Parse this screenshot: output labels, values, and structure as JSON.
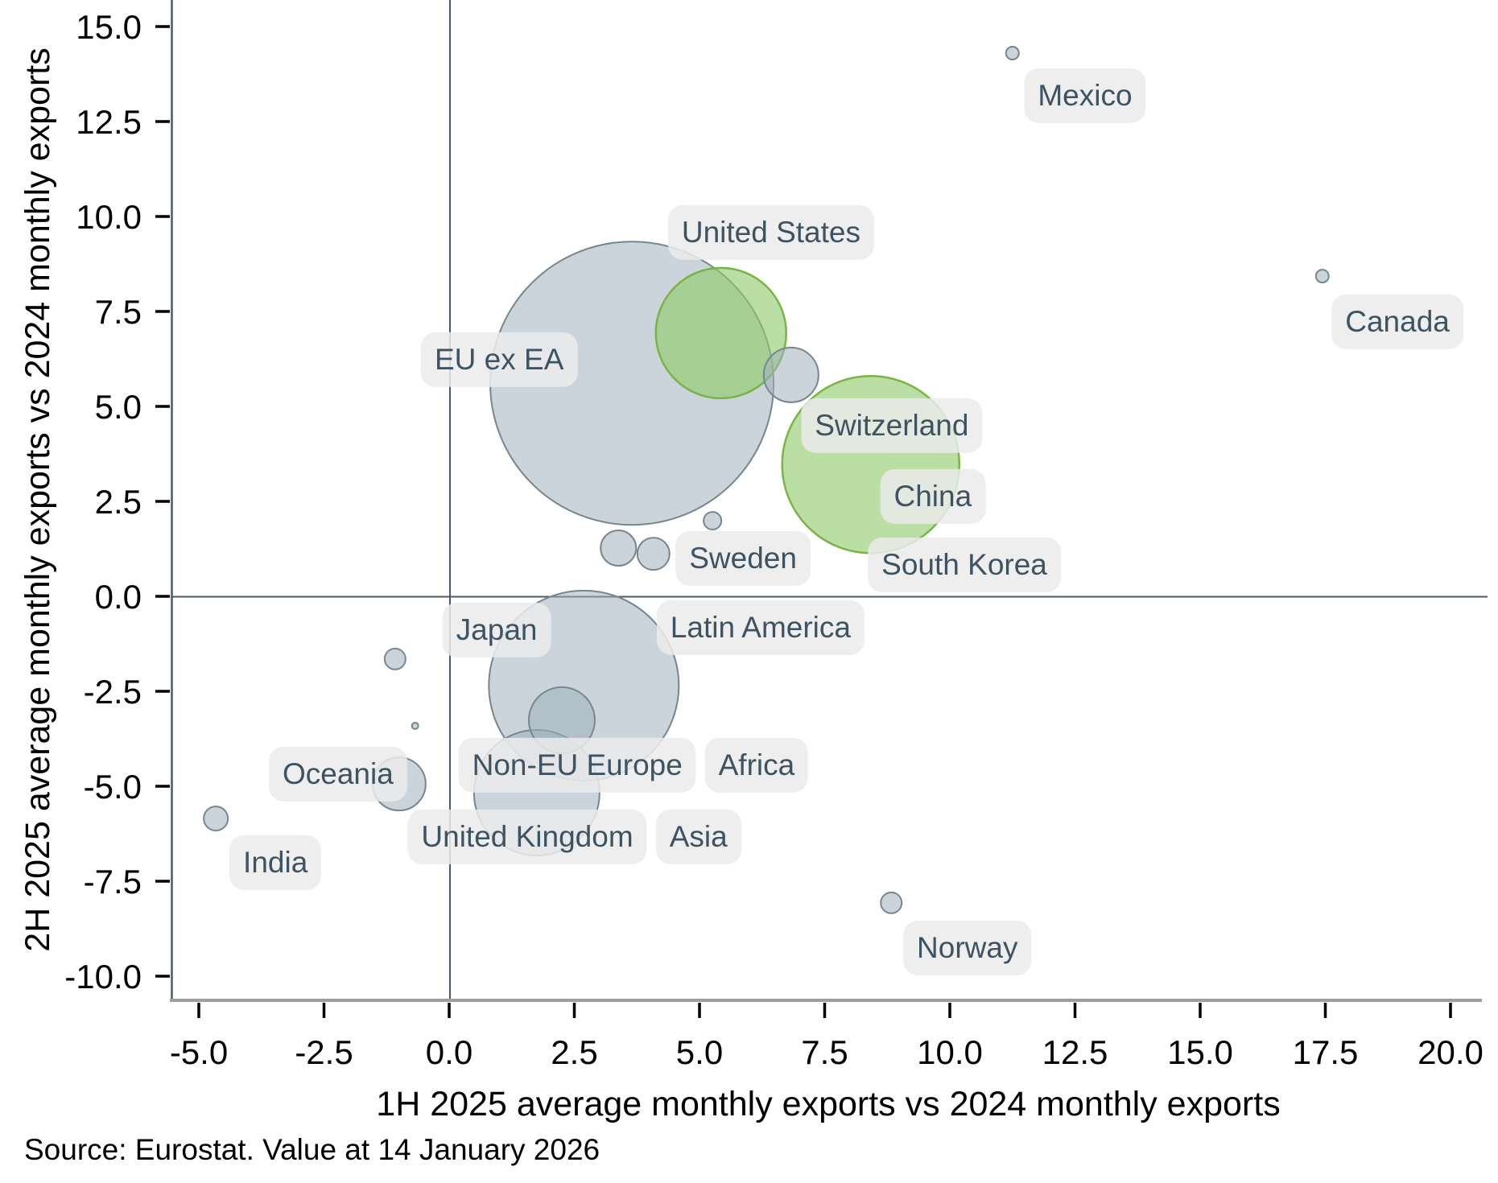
{
  "source_note": "Source: Eurostat. Value at 14 January 2026",
  "chart_data": {
    "type": "scatter",
    "title": "",
    "xlabel": "1H 2025 average monthly exports vs 2024 monthly exports",
    "ylabel": "2H 2025 average monthly exports vs 2024 monthly exports",
    "xlim": [
      -5.55,
      20.95
    ],
    "ylim": [
      -10.65,
      15.7
    ],
    "xticks": [
      -5.0,
      -2.5,
      0.0,
      2.5,
      5.0,
      7.5,
      10.0,
      12.5,
      15.0,
      17.5,
      20.0
    ],
    "yticks": [
      15.0,
      12.5,
      10.0,
      7.5,
      5.0,
      2.5,
      0.0,
      -2.5,
      -5.0,
      -7.5,
      -10.0
    ],
    "grid": "zero-lines-only",
    "legend": "none",
    "colors": {
      "gray_fill": "#9fb0bc",
      "gray_stroke": "#77868f",
      "green_fill": "#8fca6a",
      "green_stroke": "#79b445",
      "zero_line": "#4a5a66",
      "bottom_spine": "#9e9e9e",
      "tick": "#000000",
      "label_bg": "rgba(235,235,235,0.85)",
      "label_text": "#3d5362"
    },
    "points": [
      {
        "name": "EU ex EA",
        "x": 3.65,
        "y": 5.61,
        "r": 176,
        "color": "gray"
      },
      {
        "name": "Latin America",
        "x": 2.69,
        "y": -2.35,
        "r": 118,
        "color": "gray"
      },
      {
        "name": "China",
        "x": 8.42,
        "y": 3.47,
        "r": 110,
        "color": "green"
      },
      {
        "name": "United States",
        "x": 5.43,
        "y": 6.93,
        "r": 81,
        "color": "green"
      },
      {
        "name": "United Kingdom",
        "x": 1.75,
        "y": -5.17,
        "r": 78,
        "color": "gray"
      },
      {
        "name": "Non-EU Europe",
        "x": 2.25,
        "y": -3.26,
        "r": 41,
        "color": "gray"
      },
      {
        "name": "Switzerland",
        "x": 6.83,
        "y": 5.83,
        "r": 34,
        "color": "gray"
      },
      {
        "name": "Oceania",
        "x": -1.0,
        "y": -4.94,
        "r": 33,
        "color": "gray"
      },
      {
        "name": "unlabeled-a",
        "x": 3.38,
        "y": 1.27,
        "r": 22,
        "color": "gray"
      },
      {
        "name": "unlabeled-b",
        "x": 4.08,
        "y": 1.12,
        "r": 20,
        "color": "gray"
      },
      {
        "name": "India",
        "x": -4.66,
        "y": -5.85,
        "r": 15,
        "color": "gray"
      },
      {
        "name": "Japan",
        "x": -1.08,
        "y": -1.65,
        "r": 13,
        "color": "gray"
      },
      {
        "name": "Norway",
        "x": 8.83,
        "y": -8.07,
        "r": 13,
        "color": "gray"
      },
      {
        "name": "Sweden",
        "x": 5.26,
        "y": 1.99,
        "r": 11,
        "color": "gray"
      },
      {
        "name": "Mexico",
        "x": 11.25,
        "y": 14.3,
        "r": 8,
        "color": "gray"
      },
      {
        "name": "Canada",
        "x": 17.44,
        "y": 8.43,
        "r": 8,
        "color": "gray"
      },
      {
        "name": "unlabeled-dot",
        "x": -0.68,
        "y": -3.41,
        "r": 4,
        "color": "gray"
      }
    ],
    "annotations": [
      {
        "text": "Mexico",
        "x": 12.7,
        "y": 13.18
      },
      {
        "text": "Canada",
        "x": 18.94,
        "y": 7.22
      },
      {
        "text": "United States",
        "x": 6.43,
        "y": 9.58
      },
      {
        "text": "EU ex EA",
        "x": 1.0,
        "y": 6.23
      },
      {
        "text": "Switzerland",
        "x": 8.84,
        "y": 4.49
      },
      {
        "text": "China",
        "x": 9.66,
        "y": 2.63
      },
      {
        "text": "Sweden",
        "x": 5.87,
        "y": 1.0
      },
      {
        "text": "South Korea",
        "x": 10.29,
        "y": 0.83
      },
      {
        "text": "Japan",
        "x": 0.95,
        "y": -0.89
      },
      {
        "text": "Latin America",
        "x": 6.22,
        "y": -0.83
      },
      {
        "text": "Oceania",
        "x": -2.22,
        "y": -4.68
      },
      {
        "text": "Non-EU Europe",
        "x": 2.56,
        "y": -4.45
      },
      {
        "text": "Africa",
        "x": 6.14,
        "y": -4.45
      },
      {
        "text": "United Kingdom",
        "x": 1.56,
        "y": -6.33
      },
      {
        "text": "Asia",
        "x": 4.98,
        "y": -6.33
      },
      {
        "text": "India",
        "x": -3.47,
        "y": -7.01
      },
      {
        "text": "Norway",
        "x": 10.35,
        "y": -9.26
      }
    ]
  }
}
